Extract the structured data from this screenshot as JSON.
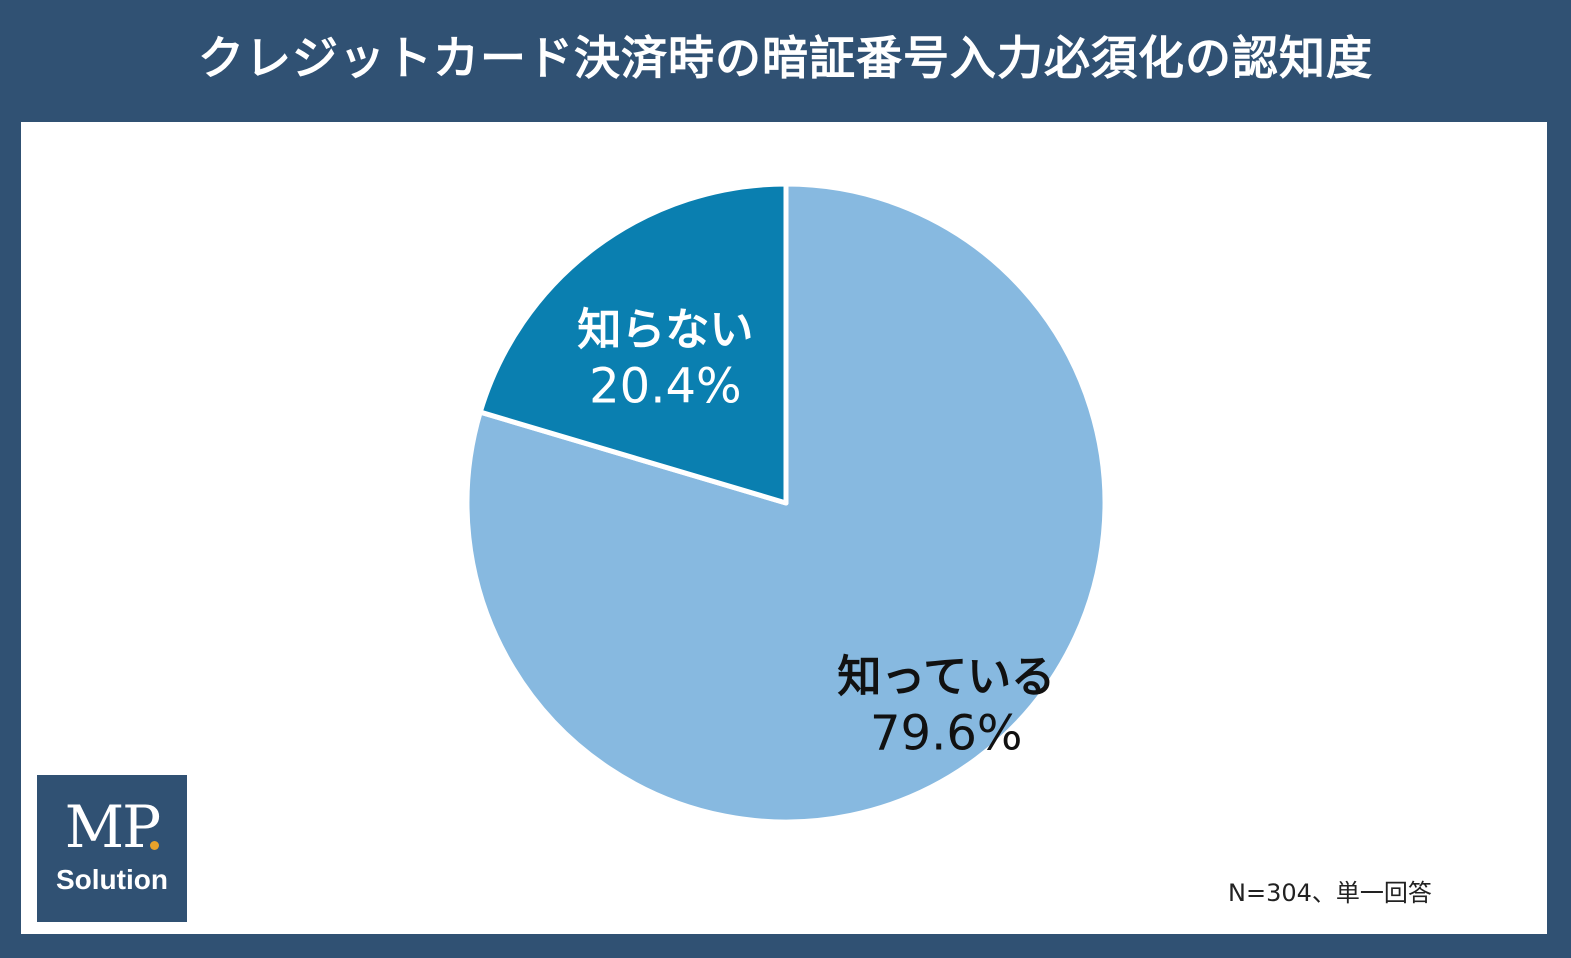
{
  "chart_data": {
    "type": "pie",
    "title": "クレジットカード決済時の暗証番号入力必須化の認知度",
    "slices": [
      {
        "label": "知っている",
        "value": 79.6,
        "value_label": "79.6%",
        "color": "#87b9e0",
        "text_color": "#111111"
      },
      {
        "label": "知らない",
        "value": 20.4,
        "value_label": "20.4%",
        "color": "#0a7fb0",
        "text_color": "#ffffff"
      }
    ],
    "note": "N=304、単一回答",
    "start_angle_deg": 0,
    "direction": "clockwise"
  },
  "logo": {
    "line1": "MP",
    "line2": "Solution"
  },
  "colors": {
    "frame": "#305173",
    "panel": "#ffffff"
  }
}
